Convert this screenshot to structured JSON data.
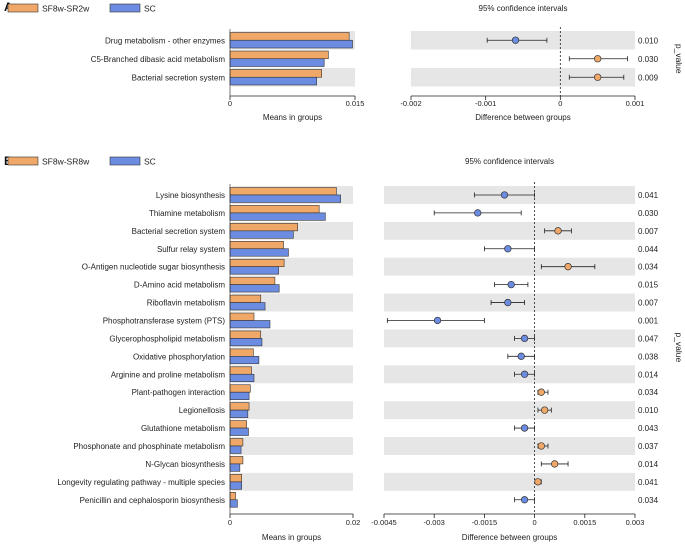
{
  "chart_data": [
    {
      "panel": "A",
      "type": "bar",
      "legend": [
        "SF8w-SR2w",
        "SC"
      ],
      "colors": {
        "g1": "#F0A868",
        "g2": "#6B8CE0",
        "edge": "#333333",
        "band": "#E6E6E6"
      },
      "categories": [
        "Drug metabolism - other enzymes",
        "C5-Branched dibasic acid metabolism",
        "Bacterial secretion system"
      ],
      "series": [
        {
          "name": "SF8w-SR2w",
          "values": [
            0.0143,
            0.0118,
            0.011
          ]
        },
        {
          "name": "SC",
          "values": [
            0.0147,
            0.0113,
            0.0104
          ]
        }
      ],
      "bar_axis": {
        "ticks": [
          0,
          0.015
        ],
        "tick_labels": [
          "0",
          "0.015"
        ],
        "max": 0.015,
        "label": "Means in groups"
      },
      "ci_title": "95% confidence intervals",
      "ci": [
        {
          "diff": -0.0006,
          "low": -0.00098,
          "high": -0.00018,
          "group": "SC"
        },
        {
          "diff": 0.0005,
          "low": 0.00012,
          "high": 0.0009,
          "group": "SF8w-SR2w"
        },
        {
          "diff": 0.0005,
          "low": 0.00012,
          "high": 0.00085,
          "group": "SF8w-SR2w"
        }
      ],
      "ci_axis": {
        "min": -0.002,
        "max": 0.001,
        "ticks": [
          -0.002,
          -0.001,
          0,
          0.001
        ],
        "tick_labels": [
          "-0.002",
          "-0.001",
          "0",
          "0.001"
        ],
        "label": "Difference between groups"
      },
      "p_values": [
        "0.010",
        "0.030",
        "0.009"
      ],
      "p_label": "p_value"
    },
    {
      "panel": "B",
      "type": "bar",
      "legend": [
        "SF8w-SR8w",
        "SC"
      ],
      "colors": {
        "g1": "#F0A868",
        "g2": "#6B8CE0",
        "edge": "#333333",
        "band": "#E6E6E6"
      },
      "categories": [
        "Lysine biosynthesis",
        "Thiamine metabolism",
        "Bacterial secretion system",
        "Sulfur relay system",
        "O-Antigen nucleotide sugar biosynthesis",
        "D-Amino acid metabolism",
        "Riboflavin metabolism",
        "Phosphotransferase system (PTS)",
        "Glycerophospholipid metabolism",
        "Oxidative phosphorylation",
        "Arginine and proline metabolism",
        "Plant-pathogen interaction",
        "Legionellosis",
        "Glutathione metabolism",
        "Phosphonate and phosphinate metabolism",
        "N-Glycan biosynthesis",
        "Longevity regulating pathway - multiple species",
        "Penicillin and cephalosporin biosynthesis"
      ],
      "series": [
        {
          "name": "SF8w-SR8w",
          "values": [
            0.0173,
            0.0145,
            0.011,
            0.0087,
            0.0088,
            0.0073,
            0.005,
            0.0039,
            0.005,
            0.0038,
            0.0035,
            0.0033,
            0.0031,
            0.0027,
            0.0021,
            0.0021,
            0.0019,
            0.0009
          ]
        },
        {
          "name": "SC",
          "values": [
            0.018,
            0.0155,
            0.0103,
            0.0095,
            0.0079,
            0.008,
            0.0057,
            0.0065,
            0.0052,
            0.0047,
            0.0039,
            0.0031,
            0.0029,
            0.003,
            0.0018,
            0.0016,
            0.0019,
            0.0012
          ]
        }
      ],
      "bar_axis": {
        "ticks": [
          0,
          0.02
        ],
        "tick_labels": [
          "0",
          "0.02"
        ],
        "max": 0.02,
        "label": "Means in groups"
      },
      "ci_title": "95% confidence intervals",
      "ci": [
        {
          "diff": -0.0009,
          "low": -0.0018,
          "high": 0.0,
          "group": "SC"
        },
        {
          "diff": -0.0017,
          "low": -0.003,
          "high": -0.0004,
          "group": "SC"
        },
        {
          "diff": 0.0007,
          "low": 0.0003,
          "high": 0.0011,
          "group": "SF8w-SR8w"
        },
        {
          "diff": -0.0008,
          "low": -0.0015,
          "high": 0.0,
          "group": "SC"
        },
        {
          "diff": 0.001,
          "low": 0.0002,
          "high": 0.0018,
          "group": "SF8w-SR8w"
        },
        {
          "diff": -0.0007,
          "low": -0.0012,
          "high": -0.0002,
          "group": "SC"
        },
        {
          "diff": -0.0008,
          "low": -0.0013,
          "high": -0.0003,
          "group": "SC"
        },
        {
          "diff": -0.0029,
          "low": -0.0044,
          "high": -0.0015,
          "group": "SC"
        },
        {
          "diff": -0.0003,
          "low": -0.0006,
          "high": 0.0,
          "group": "SC"
        },
        {
          "diff": -0.0004,
          "low": -0.0008,
          "high": 0.0,
          "group": "SC"
        },
        {
          "diff": -0.0003,
          "low": -0.0006,
          "high": 0.0,
          "group": "SC"
        },
        {
          "diff": 0.0002,
          "low": 0.0001,
          "high": 0.0004,
          "group": "SF8w-SR8w"
        },
        {
          "diff": 0.0003,
          "low": 0.0001,
          "high": 0.0005,
          "group": "SF8w-SR8w"
        },
        {
          "diff": -0.0003,
          "low": -0.0006,
          "high": 0.0,
          "group": "SC"
        },
        {
          "diff": 0.0002,
          "low": 0.0001,
          "high": 0.0004,
          "group": "SF8w-SR8w"
        },
        {
          "diff": 0.0006,
          "low": 0.0002,
          "high": 0.001,
          "group": "SF8w-SR8w"
        },
        {
          "diff": 0.0001,
          "low": 5e-05,
          "high": 0.0002,
          "group": "SF8w-SR8w"
        },
        {
          "diff": -0.0003,
          "low": -0.0006,
          "high": 0.0,
          "group": "SC"
        }
      ],
      "ci_axis": {
        "min": -0.0045,
        "max": 0.003,
        "ticks": [
          -0.0045,
          -0.003,
          -0.0015,
          0,
          0.0015,
          0.003
        ],
        "tick_labels": [
          "-0.0045",
          "-0.003",
          "-0.0015",
          "0",
          "0.0015",
          "0.003"
        ],
        "label": "Difference between groups"
      },
      "p_values": [
        "0.041",
        "0.030",
        "0.007",
        "0.044",
        "0.034",
        "0.015",
        "0.007",
        "0.001",
        "0.047",
        "0.038",
        "0.014",
        "0.034",
        "0.010",
        "0.043",
        "0.037",
        "0.014",
        "0.041",
        "0.034"
      ],
      "p_label": "p_value"
    }
  ]
}
